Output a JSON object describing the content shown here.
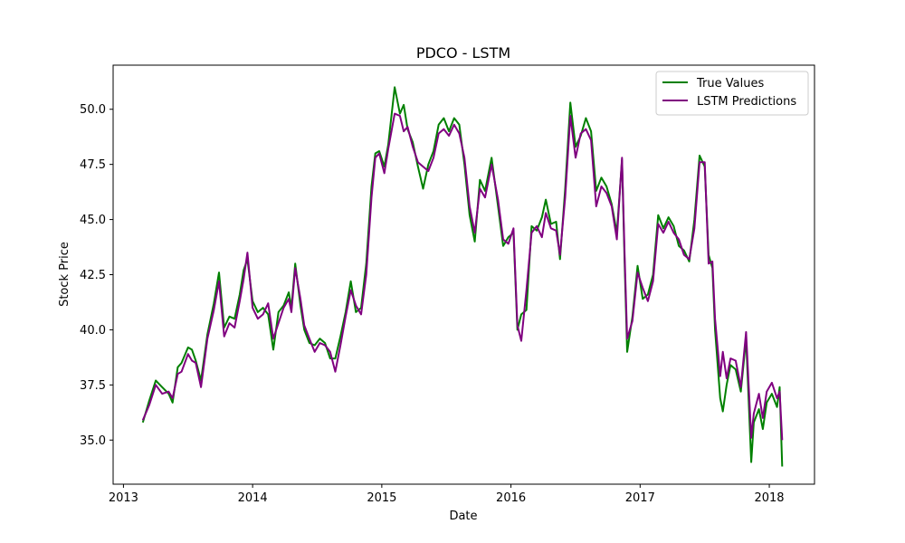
{
  "chart_data": {
    "type": "line",
    "title": "PDCO - LSTM",
    "xlabel": "Date",
    "ylabel": "Stock Price",
    "x_range": [
      2012.92,
      2018.35
    ],
    "ylim": [
      33.0,
      52.0
    ],
    "x_ticks": [
      2013,
      2014,
      2015,
      2016,
      2017,
      2018
    ],
    "y_ticks": [
      35.0,
      37.5,
      40.0,
      42.5,
      45.0,
      47.5,
      50.0
    ],
    "y_tick_labels": [
      "35.0",
      "37.5",
      "40.0",
      "42.5",
      "45.0",
      "47.5",
      "50.0"
    ],
    "x_tick_labels": [
      "2013",
      "2014",
      "2015",
      "2016",
      "2017",
      "2018"
    ],
    "legend_position": "top-right",
    "grid": false,
    "series": [
      {
        "name": "True Values",
        "color": "#008000",
        "points": [
          [
            2013.15,
            35.8
          ],
          [
            2013.2,
            36.8
          ],
          [
            2013.25,
            37.7
          ],
          [
            2013.3,
            37.4
          ],
          [
            2013.35,
            37.1
          ],
          [
            2013.38,
            36.7
          ],
          [
            2013.42,
            38.3
          ],
          [
            2013.45,
            38.5
          ],
          [
            2013.5,
            39.2
          ],
          [
            2013.53,
            39.1
          ],
          [
            2013.56,
            38.6
          ],
          [
            2013.6,
            37.7
          ],
          [
            2013.65,
            39.8
          ],
          [
            2013.7,
            41.2
          ],
          [
            2013.74,
            42.6
          ],
          [
            2013.78,
            40.1
          ],
          [
            2013.82,
            40.6
          ],
          [
            2013.86,
            40.5
          ],
          [
            2013.9,
            41.6
          ],
          [
            2013.93,
            42.7
          ],
          [
            2013.96,
            43.2
          ],
          [
            2014.0,
            41.3
          ],
          [
            2014.04,
            40.8
          ],
          [
            2014.08,
            41.0
          ],
          [
            2014.12,
            40.7
          ],
          [
            2014.16,
            39.1
          ],
          [
            2014.2,
            40.8
          ],
          [
            2014.24,
            41.1
          ],
          [
            2014.28,
            41.7
          ],
          [
            2014.3,
            41.0
          ],
          [
            2014.33,
            43.0
          ],
          [
            2014.37,
            41.1
          ],
          [
            2014.4,
            40.0
          ],
          [
            2014.44,
            39.4
          ],
          [
            2014.48,
            39.3
          ],
          [
            2014.52,
            39.6
          ],
          [
            2014.56,
            39.4
          ],
          [
            2014.6,
            38.7
          ],
          [
            2014.64,
            38.7
          ],
          [
            2014.68,
            39.7
          ],
          [
            2014.72,
            40.8
          ],
          [
            2014.76,
            42.2
          ],
          [
            2014.8,
            40.8
          ],
          [
            2014.84,
            41.0
          ],
          [
            2014.88,
            43.0
          ],
          [
            2014.92,
            46.5
          ],
          [
            2014.95,
            48.0
          ],
          [
            2014.98,
            48.1
          ],
          [
            2015.02,
            47.4
          ],
          [
            2015.05,
            48.4
          ],
          [
            2015.1,
            51.0
          ],
          [
            2015.14,
            49.8
          ],
          [
            2015.17,
            50.2
          ],
          [
            2015.2,
            49.1
          ],
          [
            2015.24,
            48.5
          ],
          [
            2015.28,
            47.4
          ],
          [
            2015.32,
            46.4
          ],
          [
            2015.36,
            47.5
          ],
          [
            2015.4,
            48.1
          ],
          [
            2015.44,
            49.3
          ],
          [
            2015.48,
            49.6
          ],
          [
            2015.52,
            49.0
          ],
          [
            2015.56,
            49.6
          ],
          [
            2015.6,
            49.3
          ],
          [
            2015.64,
            47.5
          ],
          [
            2015.68,
            45.2
          ],
          [
            2015.72,
            44.0
          ],
          [
            2015.76,
            46.8
          ],
          [
            2015.8,
            46.3
          ],
          [
            2015.85,
            47.8
          ],
          [
            2015.9,
            45.6
          ],
          [
            2015.94,
            43.8
          ],
          [
            2015.98,
            44.2
          ],
          [
            2016.02,
            44.4
          ],
          [
            2016.05,
            40.0
          ],
          [
            2016.08,
            40.7
          ],
          [
            2016.12,
            40.9
          ],
          [
            2016.16,
            44.7
          ],
          [
            2016.2,
            44.5
          ],
          [
            2016.24,
            45.1
          ],
          [
            2016.27,
            45.9
          ],
          [
            2016.31,
            44.8
          ],
          [
            2016.35,
            44.9
          ],
          [
            2016.38,
            43.2
          ],
          [
            2016.42,
            46.4
          ],
          [
            2016.46,
            50.3
          ],
          [
            2016.5,
            48.3
          ],
          [
            2016.54,
            48.8
          ],
          [
            2016.58,
            49.6
          ],
          [
            2016.62,
            49.0
          ],
          [
            2016.66,
            46.3
          ],
          [
            2016.7,
            46.9
          ],
          [
            2016.74,
            46.5
          ],
          [
            2016.78,
            45.7
          ],
          [
            2016.82,
            44.4
          ],
          [
            2016.86,
            47.7
          ],
          [
            2016.88,
            43.0
          ],
          [
            2016.9,
            39.0
          ],
          [
            2016.94,
            40.6
          ],
          [
            2016.98,
            42.9
          ],
          [
            2017.02,
            41.4
          ],
          [
            2017.06,
            41.6
          ],
          [
            2017.1,
            42.5
          ],
          [
            2017.14,
            45.2
          ],
          [
            2017.18,
            44.6
          ],
          [
            2017.22,
            45.1
          ],
          [
            2017.26,
            44.7
          ],
          [
            2017.3,
            43.8
          ],
          [
            2017.34,
            43.6
          ],
          [
            2017.38,
            43.1
          ],
          [
            2017.42,
            45.0
          ],
          [
            2017.46,
            47.9
          ],
          [
            2017.5,
            47.4
          ],
          [
            2017.53,
            43.4
          ],
          [
            2017.56,
            42.8
          ],
          [
            2017.58,
            40.0
          ],
          [
            2017.62,
            36.9
          ],
          [
            2017.64,
            36.3
          ],
          [
            2017.67,
            37.5
          ],
          [
            2017.7,
            38.4
          ],
          [
            2017.74,
            38.2
          ],
          [
            2017.78,
            37.2
          ],
          [
            2017.82,
            39.6
          ],
          [
            2017.86,
            34.0
          ],
          [
            2017.88,
            35.8
          ],
          [
            2017.92,
            36.4
          ],
          [
            2017.95,
            35.5
          ],
          [
            2017.98,
            36.7
          ],
          [
            2018.02,
            37.1
          ],
          [
            2018.06,
            36.5
          ],
          [
            2018.08,
            37.4
          ],
          [
            2018.1,
            33.8
          ]
        ]
      },
      {
        "name": "LSTM Predictions",
        "color": "#800080",
        "points": [
          [
            2013.15,
            35.9
          ],
          [
            2013.2,
            36.6
          ],
          [
            2013.25,
            37.5
          ],
          [
            2013.3,
            37.1
          ],
          [
            2013.35,
            37.2
          ],
          [
            2013.38,
            36.9
          ],
          [
            2013.42,
            38.0
          ],
          [
            2013.45,
            38.1
          ],
          [
            2013.5,
            38.9
          ],
          [
            2013.53,
            38.6
          ],
          [
            2013.56,
            38.5
          ],
          [
            2013.6,
            37.4
          ],
          [
            2013.65,
            39.6
          ],
          [
            2013.7,
            40.9
          ],
          [
            2013.74,
            42.2
          ],
          [
            2013.78,
            39.7
          ],
          [
            2013.82,
            40.3
          ],
          [
            2013.86,
            40.1
          ],
          [
            2013.9,
            41.3
          ],
          [
            2013.93,
            42.3
          ],
          [
            2013.96,
            43.5
          ],
          [
            2014.0,
            41.0
          ],
          [
            2014.04,
            40.5
          ],
          [
            2014.08,
            40.7
          ],
          [
            2014.12,
            41.2
          ],
          [
            2014.16,
            39.6
          ],
          [
            2014.2,
            40.3
          ],
          [
            2014.24,
            41.0
          ],
          [
            2014.28,
            41.4
          ],
          [
            2014.3,
            40.8
          ],
          [
            2014.33,
            42.8
          ],
          [
            2014.37,
            41.4
          ],
          [
            2014.4,
            40.2
          ],
          [
            2014.44,
            39.6
          ],
          [
            2014.48,
            39.0
          ],
          [
            2014.52,
            39.4
          ],
          [
            2014.56,
            39.3
          ],
          [
            2014.6,
            39.0
          ],
          [
            2014.64,
            38.1
          ],
          [
            2014.68,
            39.3
          ],
          [
            2014.72,
            40.6
          ],
          [
            2014.76,
            41.8
          ],
          [
            2014.8,
            41.1
          ],
          [
            2014.84,
            40.7
          ],
          [
            2014.88,
            42.5
          ],
          [
            2014.92,
            46.0
          ],
          [
            2014.95,
            47.8
          ],
          [
            2014.98,
            48.0
          ],
          [
            2015.02,
            47.1
          ],
          [
            2015.05,
            48.2
          ],
          [
            2015.1,
            49.8
          ],
          [
            2015.14,
            49.7
          ],
          [
            2015.17,
            49.0
          ],
          [
            2015.2,
            49.2
          ],
          [
            2015.24,
            48.3
          ],
          [
            2015.28,
            47.6
          ],
          [
            2015.32,
            47.4
          ],
          [
            2015.36,
            47.2
          ],
          [
            2015.4,
            47.8
          ],
          [
            2015.44,
            48.9
          ],
          [
            2015.48,
            49.1
          ],
          [
            2015.52,
            48.8
          ],
          [
            2015.56,
            49.3
          ],
          [
            2015.6,
            48.9
          ],
          [
            2015.64,
            47.8
          ],
          [
            2015.68,
            45.6
          ],
          [
            2015.72,
            44.4
          ],
          [
            2015.76,
            46.4
          ],
          [
            2015.8,
            46.0
          ],
          [
            2015.85,
            47.5
          ],
          [
            2015.9,
            45.9
          ],
          [
            2015.94,
            44.1
          ],
          [
            2015.98,
            43.9
          ],
          [
            2016.02,
            44.6
          ],
          [
            2016.05,
            40.2
          ],
          [
            2016.08,
            39.5
          ],
          [
            2016.12,
            41.8
          ],
          [
            2016.16,
            44.4
          ],
          [
            2016.2,
            44.7
          ],
          [
            2016.24,
            44.2
          ],
          [
            2016.27,
            45.3
          ],
          [
            2016.31,
            44.6
          ],
          [
            2016.35,
            44.5
          ],
          [
            2016.38,
            43.4
          ],
          [
            2016.42,
            46.0
          ],
          [
            2016.46,
            49.7
          ],
          [
            2016.5,
            47.8
          ],
          [
            2016.54,
            48.9
          ],
          [
            2016.58,
            49.1
          ],
          [
            2016.62,
            48.6
          ],
          [
            2016.66,
            45.6
          ],
          [
            2016.7,
            46.5
          ],
          [
            2016.74,
            46.2
          ],
          [
            2016.78,
            45.6
          ],
          [
            2016.82,
            44.1
          ],
          [
            2016.86,
            47.8
          ],
          [
            2016.88,
            43.4
          ],
          [
            2016.9,
            39.6
          ],
          [
            2016.94,
            40.4
          ],
          [
            2016.98,
            42.6
          ],
          [
            2017.02,
            41.9
          ],
          [
            2017.06,
            41.3
          ],
          [
            2017.1,
            42.2
          ],
          [
            2017.14,
            44.8
          ],
          [
            2017.18,
            44.4
          ],
          [
            2017.22,
            44.9
          ],
          [
            2017.26,
            44.4
          ],
          [
            2017.3,
            44.1
          ],
          [
            2017.34,
            43.4
          ],
          [
            2017.38,
            43.2
          ],
          [
            2017.42,
            44.6
          ],
          [
            2017.46,
            47.6
          ],
          [
            2017.5,
            47.6
          ],
          [
            2017.53,
            43.0
          ],
          [
            2017.56,
            43.1
          ],
          [
            2017.58,
            40.5
          ],
          [
            2017.62,
            37.9
          ],
          [
            2017.64,
            39.0
          ],
          [
            2017.67,
            37.8
          ],
          [
            2017.7,
            38.7
          ],
          [
            2017.74,
            38.6
          ],
          [
            2017.78,
            37.4
          ],
          [
            2017.82,
            39.9
          ],
          [
            2017.86,
            35.1
          ],
          [
            2017.88,
            36.2
          ],
          [
            2017.92,
            37.1
          ],
          [
            2017.95,
            36.0
          ],
          [
            2017.98,
            37.2
          ],
          [
            2018.02,
            37.6
          ],
          [
            2018.06,
            36.9
          ],
          [
            2018.08,
            37.2
          ],
          [
            2018.1,
            35.0
          ]
        ]
      }
    ]
  }
}
